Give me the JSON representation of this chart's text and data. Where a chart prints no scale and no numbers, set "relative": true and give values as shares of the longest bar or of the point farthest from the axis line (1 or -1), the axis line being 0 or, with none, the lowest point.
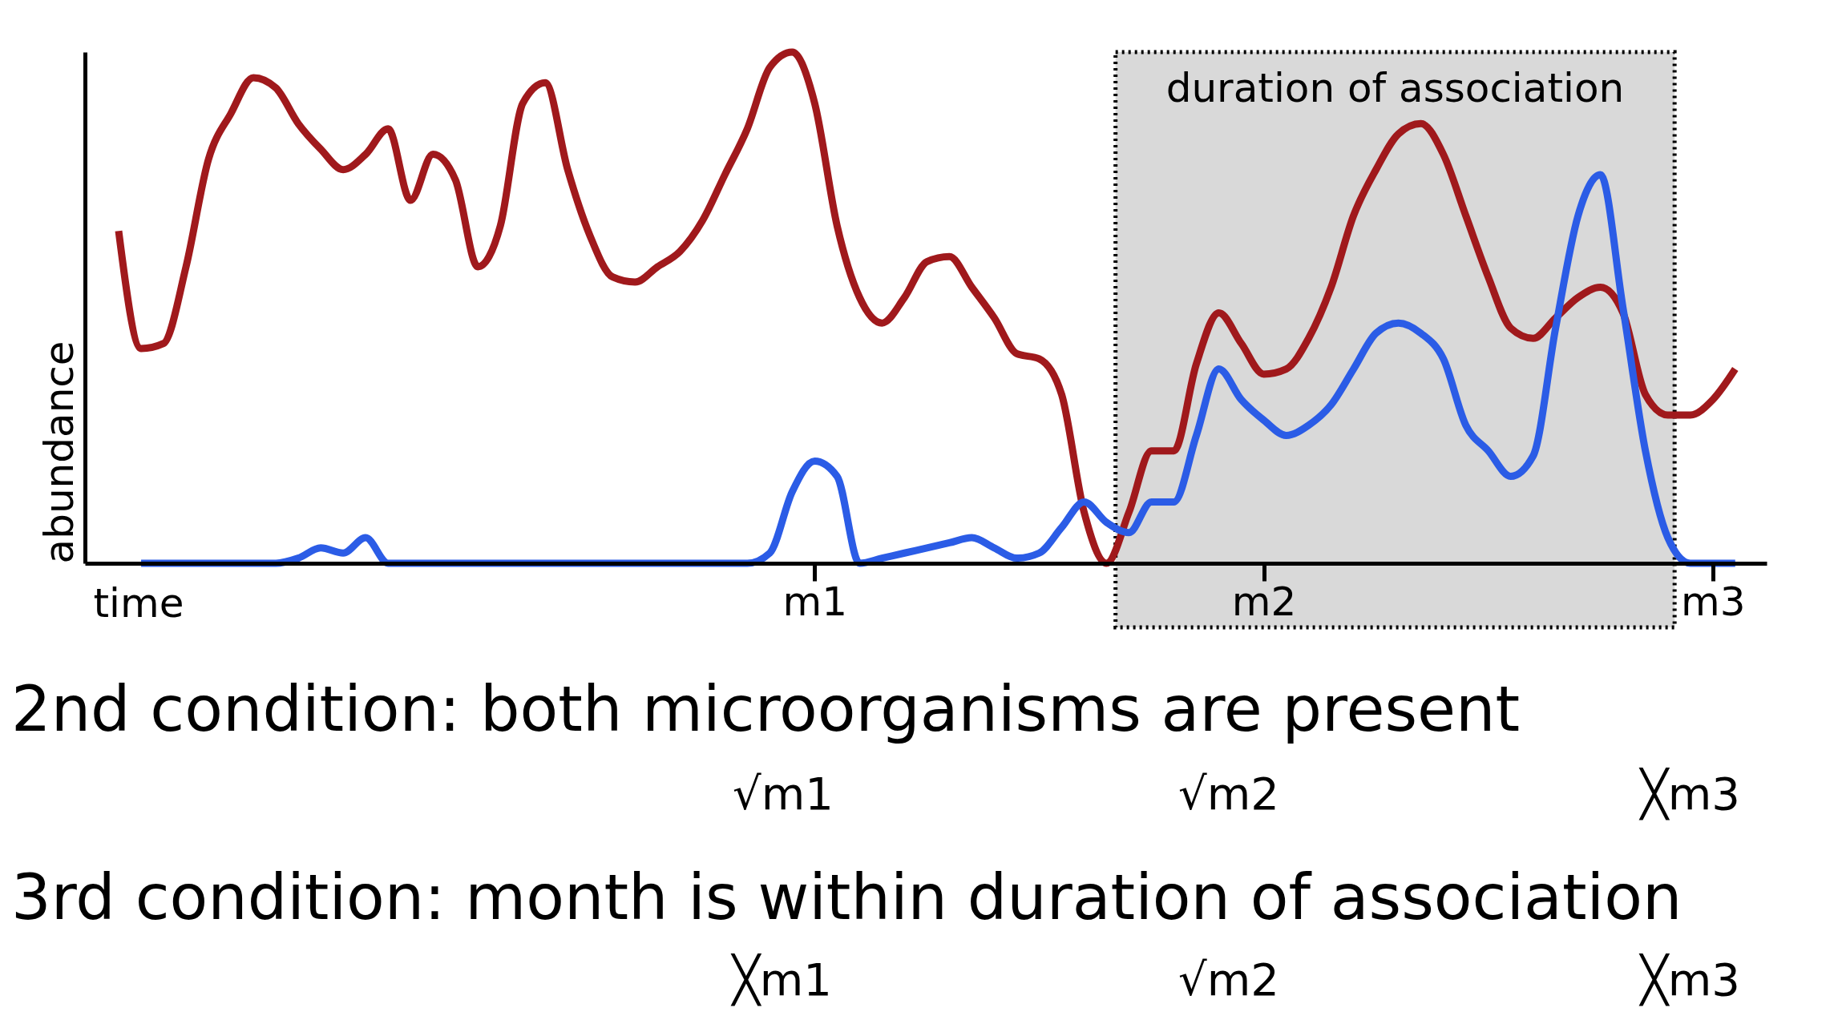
{
  "chart_data": {
    "type": "line",
    "relative": true,
    "xlabel": "time",
    "ylabel": "abundance",
    "categories": [
      null,
      null,
      null,
      null,
      null,
      null,
      null,
      null,
      null,
      null,
      null,
      null,
      null,
      null,
      null,
      null,
      null,
      null,
      null,
      null,
      null,
      null,
      null,
      null,
      null,
      null,
      null,
      null,
      null,
      null,
      null,
      null,
      "m1",
      null,
      null,
      null,
      null,
      null,
      null,
      null,
      null,
      null,
      null,
      null,
      null,
      null,
      null,
      null,
      null,
      null,
      null,
      null,
      "m2",
      null,
      null,
      null,
      null,
      null,
      null,
      null,
      null,
      null,
      null,
      null,
      null,
      null,
      null,
      null,
      null,
      null,
      null,
      null,
      "m3",
      null,
      null
    ],
    "series": [
      {
        "color": "#a0191c",
        "values": [
          null,
          0.65,
          0.42,
          0.43,
          0.58,
          0.79,
          0.88,
          0.95,
          0.93,
          0.86,
          0.81,
          0.77,
          0.8,
          0.85,
          0.71,
          0.8,
          0.75,
          0.58,
          0.66,
          0.9,
          0.94,
          0.77,
          0.64,
          0.56,
          0.55,
          0.58,
          0.61,
          0.67,
          0.76,
          0.85,
          0.97,
          1.0,
          0.9,
          0.66,
          0.52,
          0.47,
          0.52,
          0.59,
          0.6,
          0.54,
          0.48,
          0.41,
          0.4,
          0.33,
          0.1,
          0.0,
          0.1,
          0.22,
          0.22,
          0.39,
          0.49,
          0.43,
          0.37,
          0.38,
          0.44,
          0.54,
          0.68,
          0.77,
          0.84,
          0.86,
          0.8,
          0.68,
          0.56,
          0.46,
          0.44,
          0.48,
          0.52,
          0.54,
          0.49,
          0.33,
          0.29,
          0.29,
          0.32,
          0.38,
          null
        ]
      },
      {
        "color": "#2b5ce6",
        "values": [
          null,
          null,
          0.0,
          0.0,
          0.0,
          0.0,
          0.0,
          0.0,
          0.0,
          0.01,
          0.03,
          0.02,
          0.05,
          0.0,
          0.0,
          0.0,
          0.0,
          0.0,
          0.0,
          0.0,
          0.0,
          0.0,
          0.0,
          0.0,
          0.0,
          0.0,
          0.0,
          0.0,
          0.0,
          0.0,
          0.02,
          0.14,
          0.2,
          0.17,
          0.0,
          0.01,
          0.02,
          0.03,
          0.04,
          0.05,
          0.03,
          0.01,
          0.02,
          0.07,
          0.12,
          0.08,
          0.06,
          0.12,
          0.12,
          0.25,
          0.38,
          0.32,
          0.28,
          0.25,
          0.27,
          0.31,
          0.38,
          0.45,
          0.47,
          0.45,
          0.4,
          0.27,
          0.22,
          0.17,
          0.21,
          0.46,
          0.68,
          0.76,
          0.5,
          0.22,
          0.05,
          0.0,
          0.0,
          0.0,
          null
        ]
      }
    ],
    "annotations": [
      "duration of association",
      "2nd condition: both microorganisms are present",
      "√m1",
      "√m2",
      "╳m3",
      "3rd condition: month is within duration of association",
      "╳m1",
      "√m2",
      "╳m3"
    ]
  }
}
